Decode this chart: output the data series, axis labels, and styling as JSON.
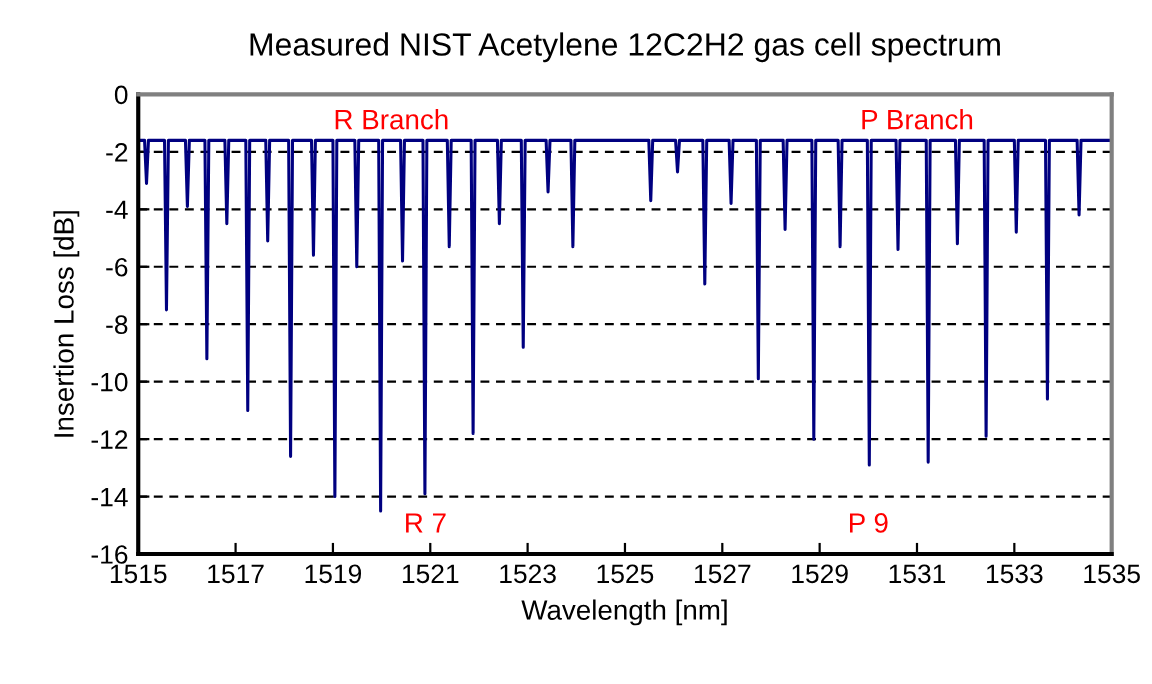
{
  "chart_data": {
    "type": "line",
    "title": "Measured NIST Acetylene 12C2H2 gas cell spectrum",
    "xlabel": "Wavelength [nm]",
    "ylabel": "Insertion Loss [dB]",
    "series": [
      {
        "color": "#000080",
        "x": [
          1515.0,
          1515.13,
          1515.17,
          1515.21,
          1515.54,
          1515.58,
          1515.62,
          1515.97,
          1516.01,
          1516.05,
          1516.37,
          1516.41,
          1516.45,
          1516.78,
          1516.82,
          1516.86,
          1517.21,
          1517.25,
          1517.29,
          1517.62,
          1517.66,
          1517.7,
          1518.09,
          1518.13,
          1518.17,
          1518.56,
          1518.6,
          1518.64,
          1519.0,
          1519.04,
          1519.08,
          1519.45,
          1519.49,
          1519.53,
          1519.94,
          1519.98,
          1520.02,
          1520.39,
          1520.43,
          1520.47,
          1520.85,
          1520.89,
          1520.93,
          1521.35,
          1521.39,
          1521.43,
          1521.84,
          1521.88,
          1521.92,
          1522.38,
          1522.42,
          1522.46,
          1522.87,
          1522.91,
          1522.95,
          1523.38,
          1523.42,
          1523.46,
          1523.89,
          1523.93,
          1523.97,
          1525.49,
          1525.53,
          1525.57,
          1526.04,
          1526.08,
          1526.12,
          1526.6,
          1526.64,
          1526.68,
          1527.14,
          1527.18,
          1527.22,
          1527.7,
          1527.74,
          1527.78,
          1528.25,
          1528.29,
          1528.33,
          1528.84,
          1528.88,
          1528.92,
          1529.38,
          1529.42,
          1529.46,
          1529.98,
          1530.02,
          1530.06,
          1530.57,
          1530.61,
          1530.65,
          1531.19,
          1531.23,
          1531.27,
          1531.79,
          1531.83,
          1531.87,
          1532.38,
          1532.42,
          1532.46,
          1533.0,
          1533.04,
          1533.08,
          1533.64,
          1533.68,
          1533.72,
          1534.29,
          1534.33,
          1534.37,
          1535.0
        ],
        "values": [
          -1.6,
          -1.6,
          -3.1,
          -1.6,
          -1.6,
          -7.5,
          -1.6,
          -1.6,
          -3.9,
          -1.6,
          -1.6,
          -9.2,
          -1.6,
          -1.6,
          -4.5,
          -1.6,
          -1.6,
          -11.0,
          -1.6,
          -1.6,
          -5.1,
          -1.6,
          -1.6,
          -12.6,
          -1.6,
          -1.6,
          -5.6,
          -1.6,
          -1.6,
          -14.0,
          -1.6,
          -1.6,
          -6.0,
          -1.6,
          -1.6,
          -14.5,
          -1.6,
          -1.6,
          -5.8,
          -1.6,
          -1.6,
          -13.9,
          -1.6,
          -1.6,
          -5.3,
          -1.6,
          -1.6,
          -11.8,
          -1.6,
          -1.6,
          -4.5,
          -1.6,
          -1.6,
          -8.8,
          -1.6,
          -1.6,
          -3.4,
          -1.6,
          -1.6,
          -5.3,
          -1.6,
          -1.6,
          -3.7,
          -1.6,
          -1.6,
          -2.7,
          -1.6,
          -1.6,
          -6.6,
          -1.6,
          -1.6,
          -3.8,
          -1.6,
          -1.6,
          -9.9,
          -1.6,
          -1.6,
          -4.7,
          -1.6,
          -1.6,
          -12.0,
          -1.6,
          -1.6,
          -5.3,
          -1.6,
          -1.6,
          -12.9,
          -1.6,
          -1.6,
          -5.4,
          -1.6,
          -1.6,
          -12.8,
          -1.6,
          -1.6,
          -5.2,
          -1.6,
          -1.6,
          -11.9,
          -1.6,
          -1.6,
          -4.8,
          -1.6,
          -1.6,
          -10.6,
          -1.6,
          -1.6,
          -4.2,
          -1.6,
          -1.6
        ]
      }
    ],
    "annotations": [
      "R Branch",
      "P Branch",
      {
        "text": "R 7",
        "x": 1520.9,
        "y": -15.0
      },
      {
        "text": "P 9",
        "x": 1530.0,
        "y": -15.0
      }
    ],
    "xlim": [
      1515,
      1535
    ],
    "xticks": [
      1515,
      1517,
      1519,
      1521,
      1523,
      1525,
      1527,
      1529,
      1531,
      1533,
      1535
    ],
    "ylim": [
      -16,
      0
    ],
    "yticks": [
      -16,
      -14,
      -12,
      -10,
      -8,
      -6,
      -4,
      -2,
      0
    ],
    "grid": "y",
    "marker": "none",
    "line_style": "solid"
  }
}
